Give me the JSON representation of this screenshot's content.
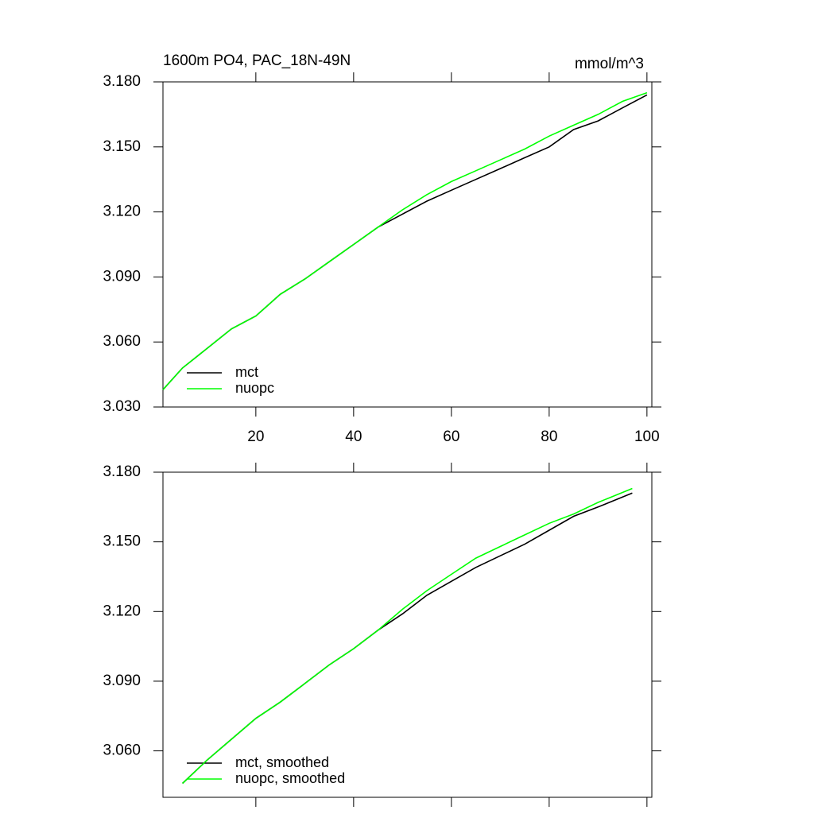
{
  "chart_data": [
    {
      "type": "line",
      "title": "1600m PO4, PAC_18N-49N",
      "subtitle": "mmol/m^3",
      "x": [
        1,
        5,
        10,
        15,
        20,
        25,
        30,
        35,
        40,
        45,
        50,
        55,
        60,
        65,
        70,
        75,
        80,
        85,
        90,
        95,
        100
      ],
      "series": [
        {
          "name": "mct",
          "color": "#000000",
          "values": [
            3.038,
            3.048,
            3.057,
            3.066,
            3.072,
            3.082,
            3.089,
            3.097,
            3.105,
            3.113,
            3.119,
            3.125,
            3.13,
            3.135,
            3.14,
            3.145,
            3.15,
            3.158,
            3.162,
            3.168,
            3.174
          ]
        },
        {
          "name": "nuopc",
          "color": "#00ff00",
          "values": [
            3.038,
            3.048,
            3.057,
            3.066,
            3.072,
            3.082,
            3.089,
            3.097,
            3.105,
            3.113,
            3.121,
            3.128,
            3.134,
            3.139,
            3.144,
            3.149,
            3.155,
            3.16,
            3.165,
            3.171,
            3.175
          ]
        }
      ],
      "xlim": [
        1,
        101
      ],
      "xticks": [
        20,
        40,
        60,
        80,
        100
      ],
      "ylim": [
        3.03,
        3.18
      ],
      "yticks": [
        {
          "value": 3.03,
          "label": "3.030"
        },
        {
          "value": 3.06,
          "label": "3.060"
        },
        {
          "value": 3.09,
          "label": "3.090"
        },
        {
          "value": 3.12,
          "label": "3.120"
        },
        {
          "value": 3.15,
          "label": "3.150"
        },
        {
          "value": 3.18,
          "label": "3.180"
        }
      ],
      "legend": "lower left"
    },
    {
      "type": "line",
      "x": [
        5,
        10,
        15,
        20,
        25,
        30,
        35,
        40,
        45,
        50,
        55,
        60,
        65,
        70,
        75,
        80,
        85,
        90,
        97
      ],
      "series": [
        {
          "name": "mct, smoothed",
          "color": "#000000",
          "values": [
            3.046,
            3.056,
            3.065,
            3.074,
            3.081,
            3.089,
            3.097,
            3.104,
            3.112,
            3.119,
            3.127,
            3.133,
            3.139,
            3.144,
            3.149,
            3.155,
            3.161,
            3.165,
            3.171
          ]
        },
        {
          "name": "nuopc, smoothed",
          "color": "#00ff00",
          "values": [
            3.046,
            3.056,
            3.065,
            3.074,
            3.081,
            3.089,
            3.097,
            3.104,
            3.112,
            3.121,
            3.129,
            3.136,
            3.143,
            3.148,
            3.153,
            3.158,
            3.162,
            3.167,
            3.173
          ]
        }
      ],
      "xlim": [
        1,
        101
      ],
      "xticks": [
        20,
        40,
        60,
        80,
        100
      ],
      "ylim": [
        3.04,
        3.18
      ],
      "yticks": [
        {
          "value": 3.06,
          "label": "3.060"
        },
        {
          "value": 3.09,
          "label": "3.090"
        },
        {
          "value": 3.12,
          "label": "3.120"
        },
        {
          "value": 3.15,
          "label": "3.150"
        },
        {
          "value": 3.18,
          "label": "3.180"
        }
      ],
      "legend": "lower left"
    }
  ]
}
